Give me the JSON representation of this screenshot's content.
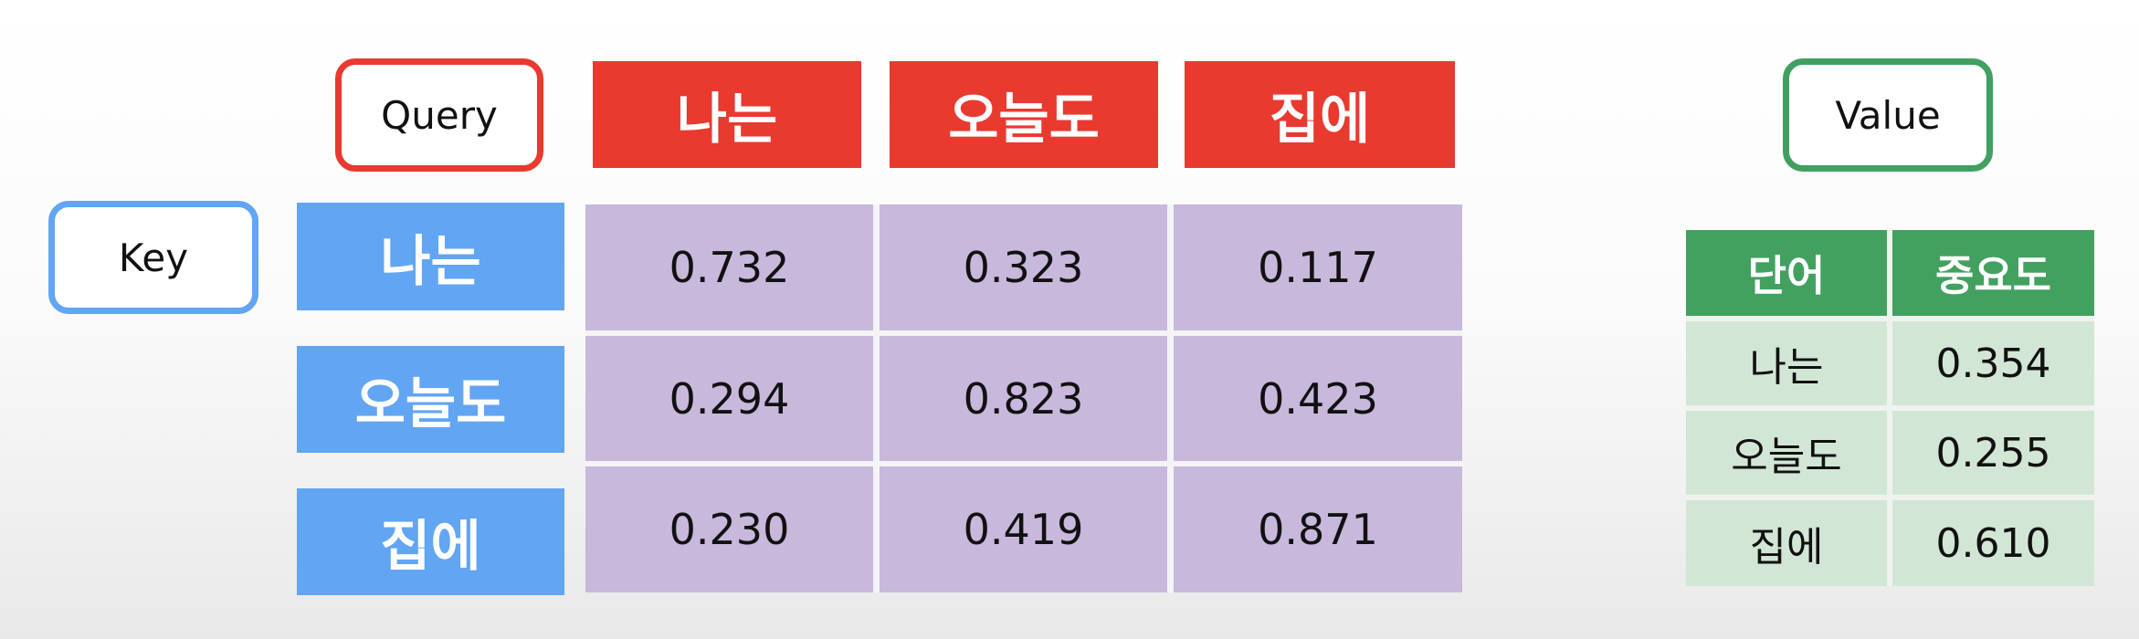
{
  "labels": {
    "query": "Query",
    "key": "Key",
    "value": "Value"
  },
  "query_headers": [
    "나는",
    "오늘도",
    "집에"
  ],
  "key_headers": [
    "나는",
    "오늘도",
    "집에"
  ],
  "matrix": [
    [
      "0.732",
      "0.323",
      "0.117"
    ],
    [
      "0.294",
      "0.823",
      "0.423"
    ],
    [
      "0.230",
      "0.419",
      "0.871"
    ]
  ],
  "value_table": {
    "headers": [
      "단어",
      "중요도"
    ],
    "rows": [
      [
        "나는",
        "0.354"
      ],
      [
        "오늘도",
        "0.255"
      ],
      [
        "집에",
        "0.610"
      ]
    ]
  },
  "colors": {
    "query": "#e83a2f",
    "key": "#62a5f3",
    "value": "#41a061",
    "matrix_cell": "#c8b8dc",
    "value_cell": "#d2e6d6"
  }
}
